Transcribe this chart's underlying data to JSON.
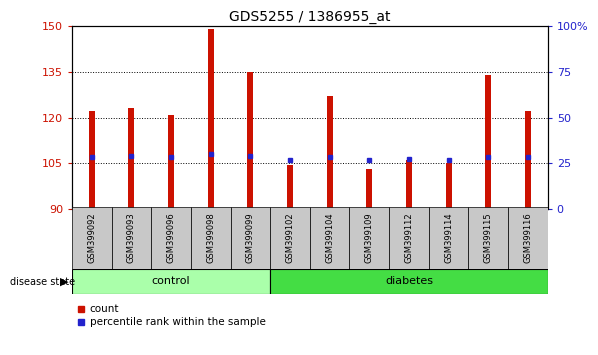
{
  "title": "GDS5255 / 1386955_at",
  "samples": [
    "GSM399092",
    "GSM399093",
    "GSM399096",
    "GSM399098",
    "GSM399099",
    "GSM399102",
    "GSM399104",
    "GSM399109",
    "GSM399112",
    "GSM399114",
    "GSM399115",
    "GSM399116"
  ],
  "count_values": [
    122,
    123,
    121,
    149,
    135,
    104.5,
    127,
    103,
    106,
    105,
    134,
    122
  ],
  "percentile_values": [
    107,
    107.5,
    107,
    108,
    107.5,
    106,
    107,
    106,
    106.5,
    106,
    107,
    107
  ],
  "ylim": [
    90,
    150
  ],
  "yticks": [
    90,
    105,
    120,
    135,
    150
  ],
  "right_yticks": [
    0,
    25,
    50,
    75,
    100
  ],
  "n_ctrl": 5,
  "n_diab": 7,
  "bar_color": "#CC1100",
  "percentile_color": "#2222CC",
  "bar_bottom": 90,
  "bar_width": 0.15,
  "control_label": "control",
  "diabetes_label": "diabetes",
  "disease_state_label": "disease state",
  "legend_count": "count",
  "legend_percentile": "percentile rank within the sample",
  "control_color": "#AAFFAA",
  "diabetes_color": "#44DD44",
  "axis_label_color_left": "#CC1100",
  "axis_label_color_right": "#2222CC",
  "tick_label_bg": "#C8C8C8"
}
